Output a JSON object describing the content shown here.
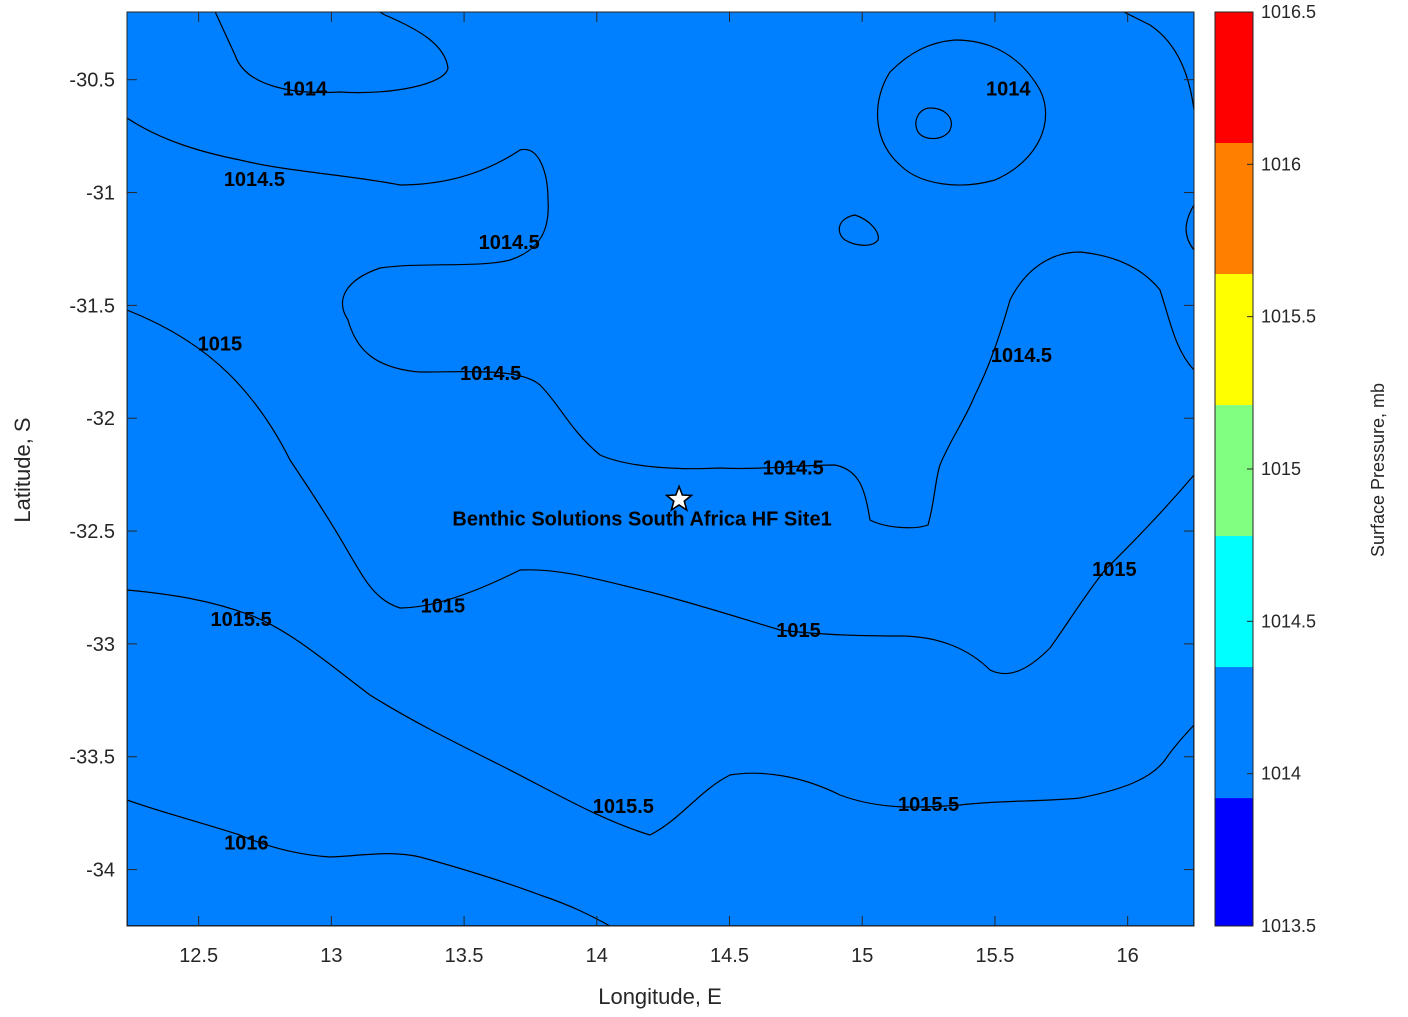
{
  "chart_data": {
    "type": "contour",
    "title": "",
    "xlabel": "Longitude, E",
    "ylabel": "Latitude, S",
    "xlim": [
      12.23,
      16.25
    ],
    "ylim": [
      -34.25,
      -30.2
    ],
    "xticks": [
      "12.5",
      "13",
      "13.5",
      "14",
      "14.5",
      "15",
      "15.5",
      "16"
    ],
    "yticks": [
      "-30.5",
      "-31",
      "-31.5",
      "-32",
      "-32.5",
      "-33",
      "-33.5",
      "-34"
    ],
    "grid": false,
    "levels": [
      1013.5,
      1014,
      1014.5,
      1015,
      1015.5,
      1016,
      1016.5
    ],
    "level_colors": [
      "#0000ff",
      "#0080ff",
      "#00ffff",
      "#80ff80",
      "#ffff00",
      "#ff8000",
      "#ff0000"
    ],
    "colorbar": {
      "label": "Surface Pressure, mb",
      "ticks": [
        "1013.5",
        "1014",
        "1014.5",
        "1015",
        "1015.5",
        "1016",
        "1016.5"
      ],
      "range": [
        1013.5,
        1016.5
      ]
    },
    "contour_labels": [
      {
        "text": "1014",
        "x": 12.9,
        "y": -30.57
      },
      {
        "text": "1014",
        "x": 15.55,
        "y": -30.57
      },
      {
        "text": "1014.5",
        "x": 12.71,
        "y": -30.97
      },
      {
        "text": "1014.5",
        "x": 13.67,
        "y": -31.25
      },
      {
        "text": "1014.5",
        "x": 13.6,
        "y": -31.83
      },
      {
        "text": "1014.5",
        "x": 15.6,
        "y": -31.75
      },
      {
        "text": "1014.5",
        "x": 14.74,
        "y": -32.25
      },
      {
        "text": "1015",
        "x": 12.58,
        "y": -31.7
      },
      {
        "text": "1015",
        "x": 13.42,
        "y": -32.86
      },
      {
        "text": "1015",
        "x": 14.76,
        "y": -32.97
      },
      {
        "text": "1015",
        "x": 15.95,
        "y": -32.7
      },
      {
        "text": "1015.5",
        "x": 12.66,
        "y": -32.92
      },
      {
        "text": "1015.5",
        "x": 14.1,
        "y": -33.75
      },
      {
        "text": "1015.5",
        "x": 15.25,
        "y": -33.74
      },
      {
        "text": "1016",
        "x": 12.68,
        "y": -33.91
      }
    ],
    "site": {
      "name": "Benthic Solutions South Africa HF Site1",
      "lon": 14.31,
      "lat": -32.36
    }
  }
}
